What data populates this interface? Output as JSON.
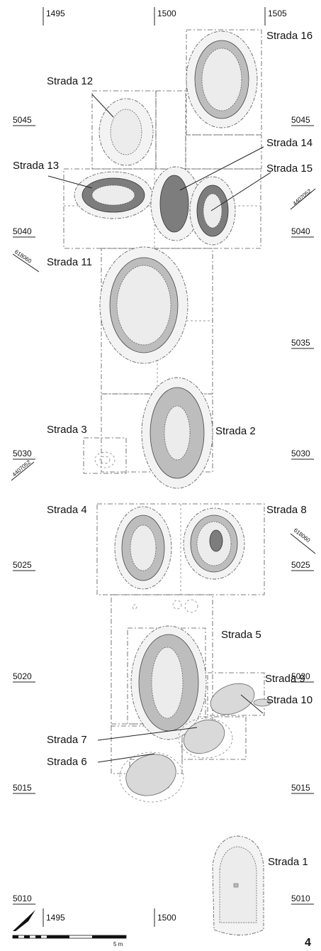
{
  "figure_number": "4",
  "axis_labels": {
    "x_top": [
      "1495",
      "1500",
      "1505"
    ],
    "x_bottom": [
      "1495",
      "1500"
    ],
    "y_left": [
      "5045",
      "5040",
      "5030",
      "5025",
      "5020",
      "5015",
      "5010"
    ],
    "y_right": [
      "5045",
      "5040",
      "5035",
      "5030",
      "5025",
      "5020",
      "5015",
      "5010"
    ]
  },
  "survey_marks": [
    "618060",
    "4407052",
    "4407052",
    "618060"
  ],
  "scale_bar_label": "5 m",
  "features": [
    {
      "label": "Strada 16"
    },
    {
      "label": "Strada 12"
    },
    {
      "label": "Strada 14"
    },
    {
      "label": "Strada 13"
    },
    {
      "label": "Strada 15"
    },
    {
      "label": "Strada 11"
    },
    {
      "label": "Strada 3"
    },
    {
      "label": "Strada 2"
    },
    {
      "label": "Strada 4"
    },
    {
      "label": "Strada 8"
    },
    {
      "label": "Strada 5"
    },
    {
      "label": "Strada 9"
    },
    {
      "label": "Strada 10"
    },
    {
      "label": "Strada 7"
    },
    {
      "label": "Strada 6"
    },
    {
      "label": "Strada 1"
    }
  ]
}
